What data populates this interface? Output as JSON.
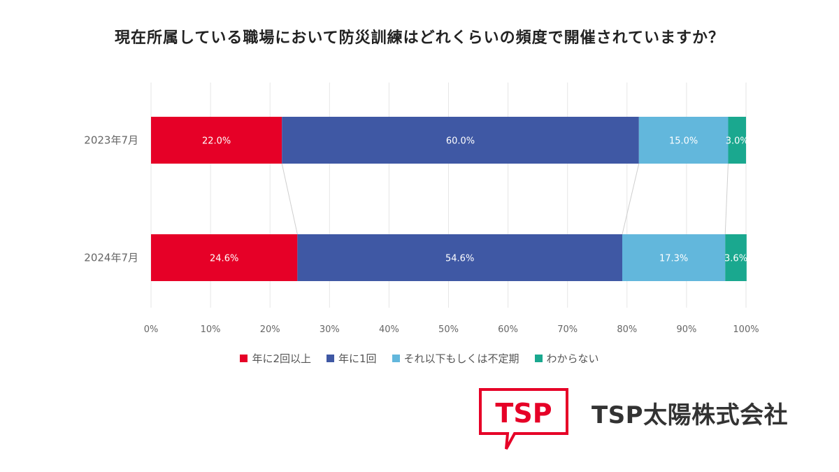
{
  "title": "現在所属している職場において防災訓練はどれくらいの頻度で開催されていますか？",
  "company_name": "TSP太陽株式会社",
  "logo_text": "TSP",
  "chart_data": {
    "type": "bar",
    "orientation": "horizontal",
    "stacked": true,
    "percent_stacked": true,
    "title": "現在所属している職場において防災訓練はどれくらいの頻度で開催されていますか？",
    "categories": [
      "2023年7月",
      "2024年7月"
    ],
    "series": [
      {
        "name": "年に2回以上",
        "color": "#e60027",
        "values": [
          22.0,
          24.6
        ],
        "labels": [
          "22.0%",
          "24.6%"
        ]
      },
      {
        "name": "年に1回",
        "color": "#3f58a4",
        "values": [
          60.0,
          54.6
        ],
        "labels": [
          "60.0%",
          "54.6%"
        ]
      },
      {
        "name": "それ以下もしくは不定期",
        "color": "#62b7dc",
        "values": [
          15.0,
          17.3
        ],
        "labels": [
          "15.0%",
          "17.3%"
        ]
      },
      {
        "name": "わからない",
        "color": "#1aa88f",
        "values": [
          3.0,
          3.6
        ],
        "labels": [
          "3.0%",
          "3.6%"
        ]
      }
    ],
    "xlim": [
      0,
      100
    ],
    "xticks": [
      0,
      10,
      20,
      30,
      40,
      50,
      60,
      70,
      80,
      90,
      100
    ],
    "xtick_labels": [
      "0%",
      "10%",
      "20%",
      "30%",
      "40%",
      "50%",
      "60%",
      "70%",
      "80%",
      "90%",
      "100%"
    ],
    "grid": true,
    "series_connector_lines": true,
    "legend_position": "bottom"
  }
}
